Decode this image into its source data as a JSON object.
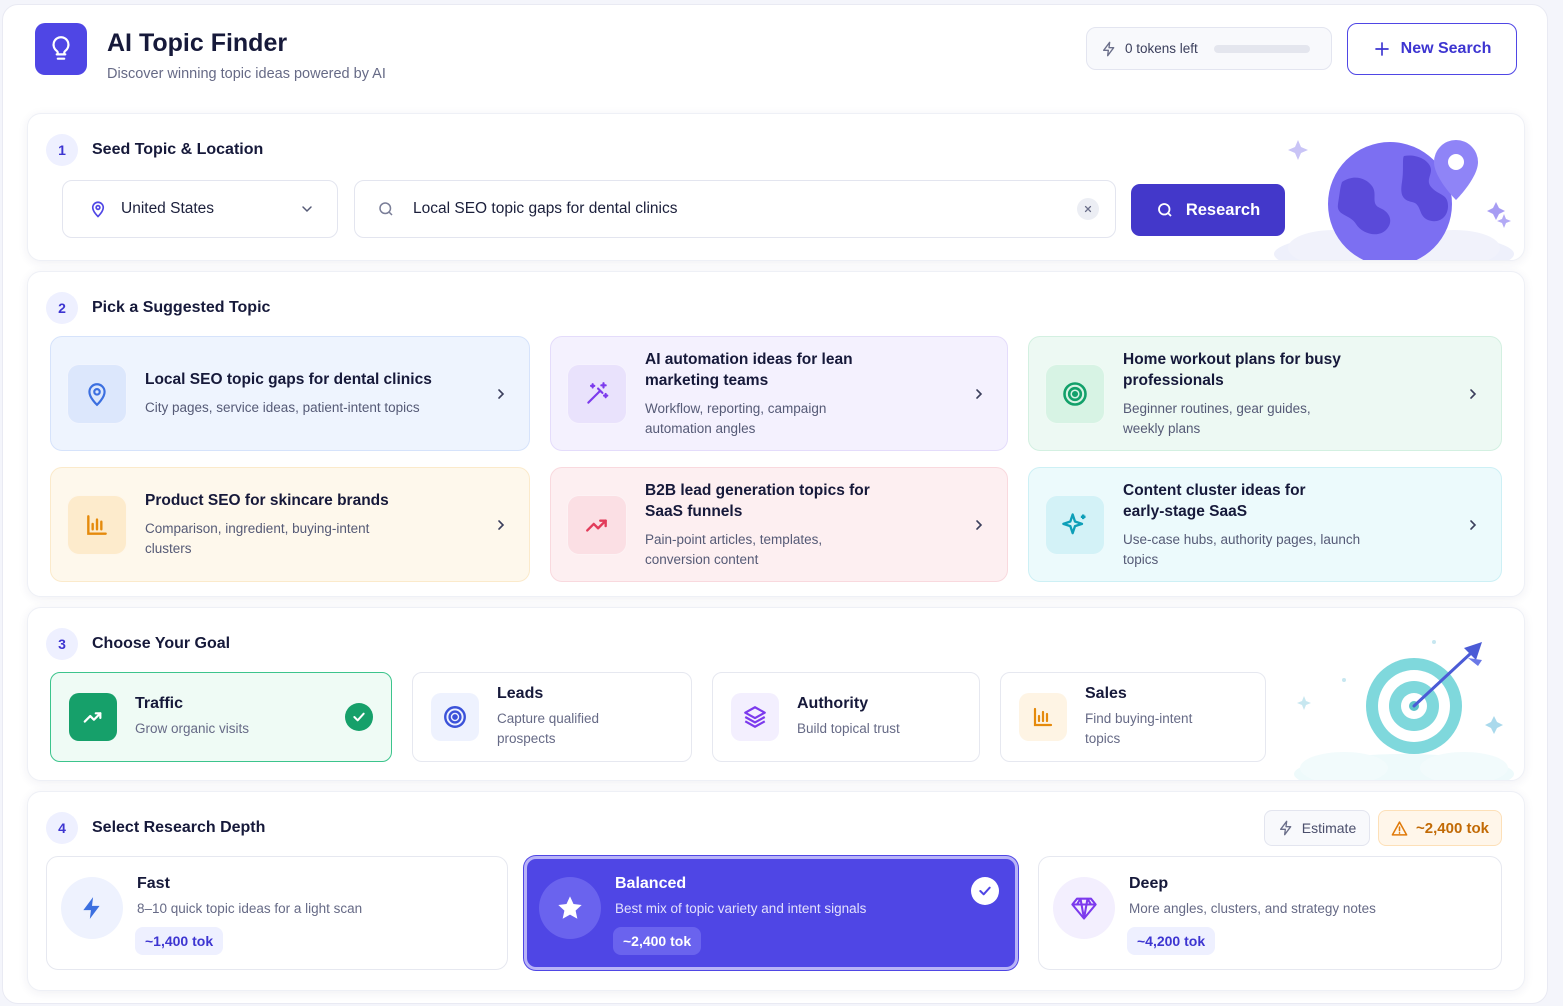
{
  "header": {
    "title": "AI Topic Finder",
    "subtitle": "Discover winning topic ideas powered by AI",
    "tokens_label": "0 tokens left",
    "tokens_progress": 0,
    "new_search_label": "New Search"
  },
  "step1": {
    "number": "1",
    "title": "Seed Topic & Location",
    "location": "United States",
    "search_value": "Local SEO topic gaps for dental clinics",
    "research_label": "Research"
  },
  "step2": {
    "number": "2",
    "title": "Pick a Suggested Topic",
    "topics": [
      {
        "title": "Local SEO topic gaps for dental clinics",
        "desc": "City pages, service ideas, patient-intent topics",
        "icon": "map-pin-icon"
      },
      {
        "title": "AI automation ideas for lean marketing teams",
        "desc": "Workflow, reporting, campaign automation angles",
        "icon": "magic-wand-icon"
      },
      {
        "title": "Home workout plans for busy professionals",
        "desc": "Beginner routines, gear guides, weekly plans",
        "icon": "target-icon"
      },
      {
        "title": "Product SEO for skincare brands",
        "desc": "Comparison, ingredient, buying-intent clusters",
        "icon": "bar-chart-icon"
      },
      {
        "title": "B2B lead generation topics for SaaS funnels",
        "desc": "Pain-point articles, templates, conversion content",
        "icon": "trending-up-icon"
      },
      {
        "title": "Content cluster ideas for early-stage SaaS",
        "desc": "Use-case hubs, authority pages, launch topics",
        "icon": "sparkle-icon"
      }
    ]
  },
  "step3": {
    "number": "3",
    "title": "Choose Your Goal",
    "goals": [
      {
        "title": "Traffic",
        "desc": "Grow organic visits",
        "icon": "trending-up-icon",
        "selected": true
      },
      {
        "title": "Leads",
        "desc": "Capture qualified prospects",
        "icon": "target-icon",
        "selected": false
      },
      {
        "title": "Authority",
        "desc": "Build topical trust",
        "icon": "layers-icon",
        "selected": false
      },
      {
        "title": "Sales",
        "desc": "Find buying-intent topics",
        "icon": "bar-chart-icon",
        "selected": false
      }
    ]
  },
  "step4": {
    "number": "4",
    "title": "Select Research Depth",
    "estimate_label": "Estimate",
    "estimate_value": "~2,400 tok",
    "depths": [
      {
        "title": "Fast",
        "desc": "8–10 quick topic ideas for a light scan",
        "tok": "~1,400 tok",
        "icon": "lightning-icon",
        "selected": false
      },
      {
        "title": "Balanced",
        "desc": "Best mix of topic variety and intent signals",
        "tok": "~2,400 tok",
        "icon": "star-icon",
        "selected": true
      },
      {
        "title": "Deep",
        "desc": "More angles, clusters, and strategy notes",
        "tok": "~4,200 tok",
        "icon": "diamond-icon",
        "selected": false
      }
    ]
  },
  "colors": {
    "accent": "#4f46e5",
    "accent_dark": "#4338ca",
    "success": "#16a06a",
    "warning": "#c26a05"
  }
}
